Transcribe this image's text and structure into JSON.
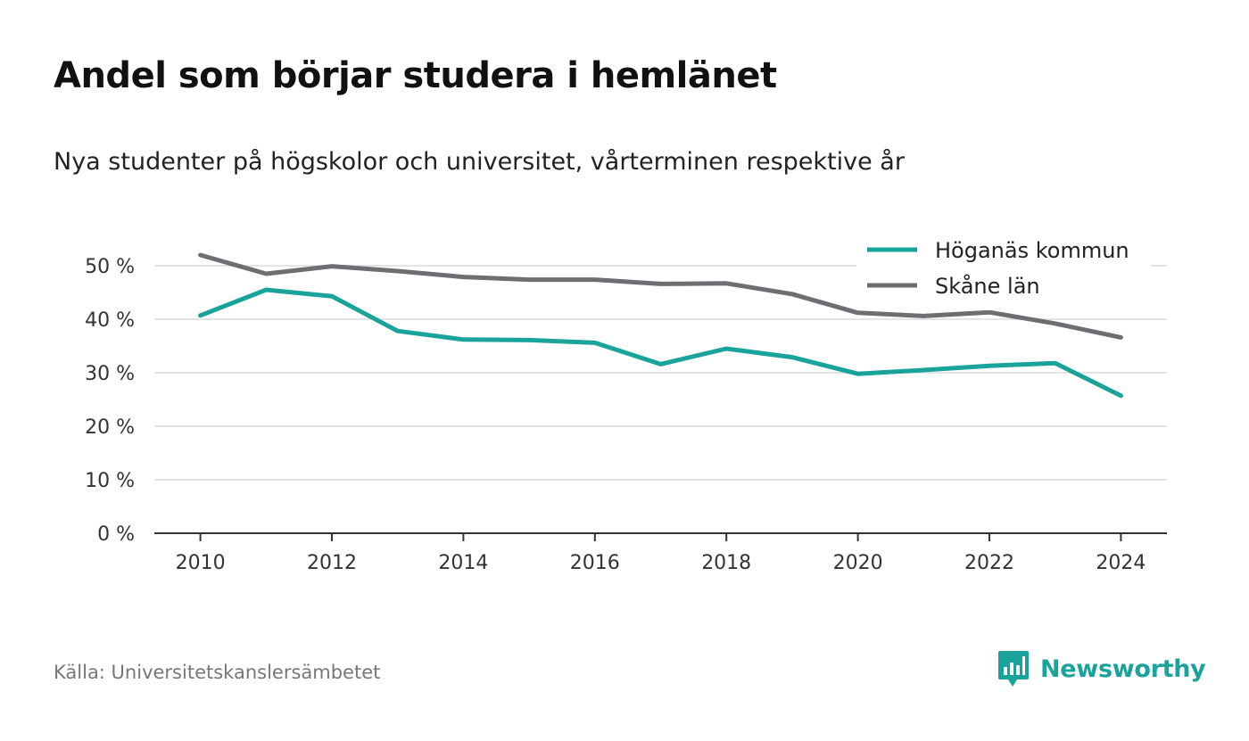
{
  "header": {
    "title": "Andel som börjar studera i hemlänet",
    "subtitle": "Nya studenter på högskolor och universitet, vårterminen respektive år"
  },
  "footer": {
    "source": "Källa: Universitetskanslersämbetet",
    "brand": "Newsworthy",
    "brand_color": "#1aa39a",
    "brand_icon": "bar-chart-speech-bubble-icon"
  },
  "chart_data": {
    "type": "line",
    "x": [
      2010,
      2011,
      2012,
      2013,
      2014,
      2015,
      2016,
      2017,
      2018,
      2019,
      2020,
      2021,
      2022,
      2023,
      2024
    ],
    "xticks": [
      2010,
      2012,
      2014,
      2016,
      2018,
      2020,
      2022,
      2024
    ],
    "xlim": [
      2009.3,
      2024.7
    ],
    "ylim": [
      0,
      55
    ],
    "yticks": [
      0,
      10,
      20,
      30,
      40,
      50
    ],
    "ytick_labels": [
      "0 %",
      "10 %",
      "20 %",
      "30 %",
      "40 %",
      "50 %"
    ],
    "grid": true,
    "legend_position": "top-right",
    "series": [
      {
        "name": "Höganäs kommun",
        "color": "#1aa39a",
        "values": [
          40.7,
          45.5,
          44.3,
          37.8,
          36.2,
          36.1,
          35.6,
          31.6,
          34.5,
          32.9,
          29.8,
          30.5,
          31.3,
          31.8,
          25.7
        ]
      },
      {
        "name": "Skåne län",
        "color": "#6e6e72",
        "values": [
          52.0,
          48.5,
          49.9,
          49.0,
          47.9,
          47.4,
          47.4,
          46.6,
          46.7,
          44.7,
          41.2,
          40.6,
          41.3,
          39.2,
          36.6
        ]
      }
    ]
  }
}
